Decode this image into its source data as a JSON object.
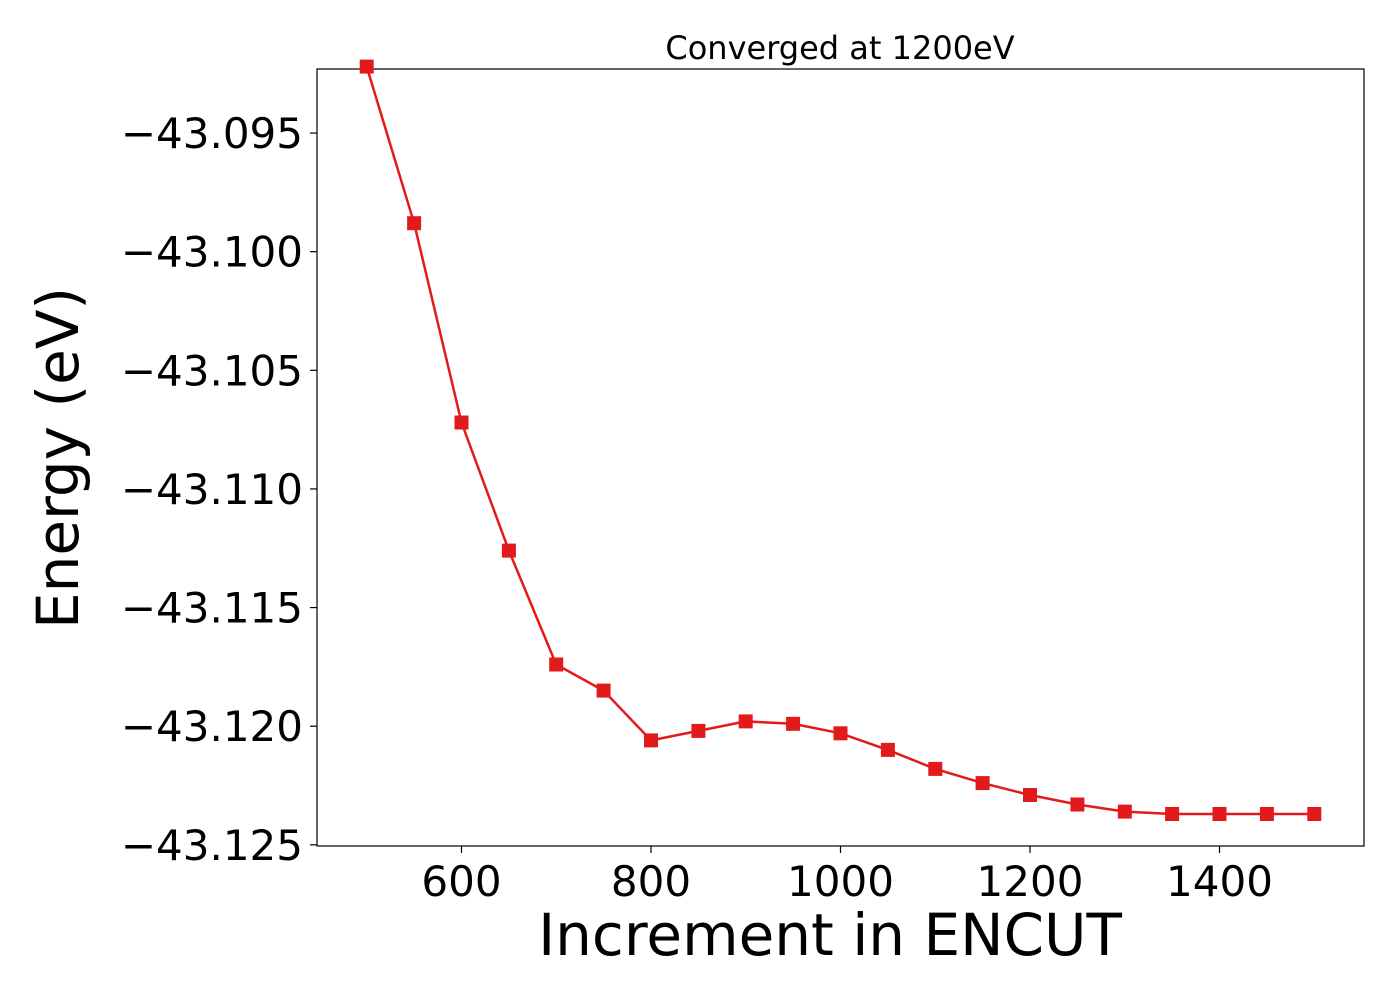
{
  "chart_data": {
    "type": "line",
    "title": "Converged at 1200eV",
    "xlabel": "Increment in ENCUT",
    "ylabel": "Energy (eV)",
    "xlim": [
      447.5,
      1552.5
    ],
    "ylim": [
      -43.12505,
      -43.0923
    ],
    "xticks": [
      600,
      800,
      1000,
      1200,
      1400
    ],
    "xtick_labels": [
      "600",
      "800",
      "1000",
      "1200",
      "1400"
    ],
    "yticks": [
      -43.095,
      -43.1,
      -43.105,
      -43.11,
      -43.115,
      -43.12,
      -43.125
    ],
    "ytick_labels": [
      "−43.095",
      "−43.100",
      "−43.105",
      "−43.110",
      "−43.115",
      "−43.120",
      "−43.125"
    ],
    "grid": false,
    "series": [
      {
        "color": "#e31a1c",
        "marker": "square",
        "x": [
          500,
          550,
          600,
          650,
          700,
          750,
          800,
          850,
          900,
          950,
          1000,
          1050,
          1100,
          1150,
          1200,
          1250,
          1300,
          1350,
          1400,
          1450,
          1500
        ],
        "y": [
          -43.0922,
          -43.0988,
          -43.1072,
          -43.1126,
          -43.1174,
          -43.1185,
          -43.1206,
          -43.1202,
          -43.1198,
          -43.1199,
          -43.1203,
          -43.121,
          -43.1218,
          -43.1224,
          -43.1229,
          -43.1233,
          -43.1236,
          -43.1237,
          -43.1237,
          -43.1237,
          -43.1237
        ]
      }
    ]
  }
}
